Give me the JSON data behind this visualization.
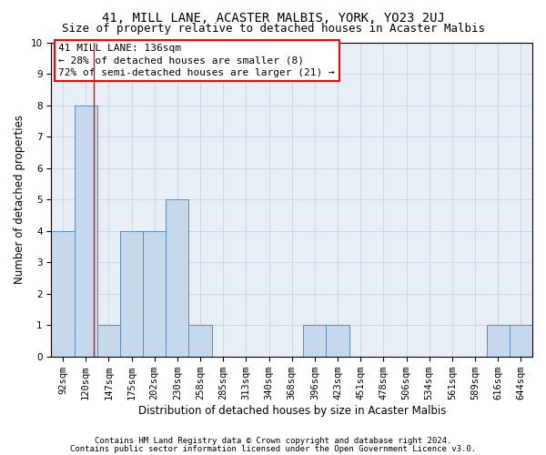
{
  "title": "41, MILL LANE, ACASTER MALBIS, YORK, YO23 2UJ",
  "subtitle": "Size of property relative to detached houses in Acaster Malbis",
  "xlabel": "Distribution of detached houses by size in Acaster Malbis",
  "ylabel": "Number of detached properties",
  "categories": [
    "92sqm",
    "120sqm",
    "147sqm",
    "175sqm",
    "202sqm",
    "230sqm",
    "258sqm",
    "285sqm",
    "313sqm",
    "340sqm",
    "368sqm",
    "396sqm",
    "423sqm",
    "451sqm",
    "478sqm",
    "506sqm",
    "534sqm",
    "561sqm",
    "589sqm",
    "616sqm",
    "644sqm"
  ],
  "values": [
    4,
    8,
    1,
    4,
    4,
    5,
    1,
    0,
    0,
    0,
    0,
    1,
    1,
    0,
    0,
    0,
    0,
    0,
    0,
    1,
    1
  ],
  "bar_color": "#c6d9ec",
  "bar_edge_color": "#5a8abf",
  "red_line_x": 1.35,
  "ylim": [
    0,
    10
  ],
  "yticks": [
    0,
    1,
    2,
    3,
    4,
    5,
    6,
    7,
    8,
    9,
    10
  ],
  "annotation_line1": "41 MILL LANE: 136sqm",
  "annotation_line2": "← 28% of detached houses are smaller (8)",
  "annotation_line3": "72% of semi-detached houses are larger (21) →",
  "footer1": "Contains HM Land Registry data © Crown copyright and database right 2024.",
  "footer2": "Contains public sector information licensed under the Open Government Licence v3.0.",
  "background_color": "#ffffff",
  "plot_bg_color": "#e8eef5",
  "grid_color": "#c8d4e4",
  "title_fontsize": 10,
  "subtitle_fontsize": 9,
  "tick_fontsize": 7.5,
  "ylabel_fontsize": 8.5,
  "xlabel_fontsize": 8.5,
  "annot_fontsize": 8,
  "footer_fontsize": 6.5
}
